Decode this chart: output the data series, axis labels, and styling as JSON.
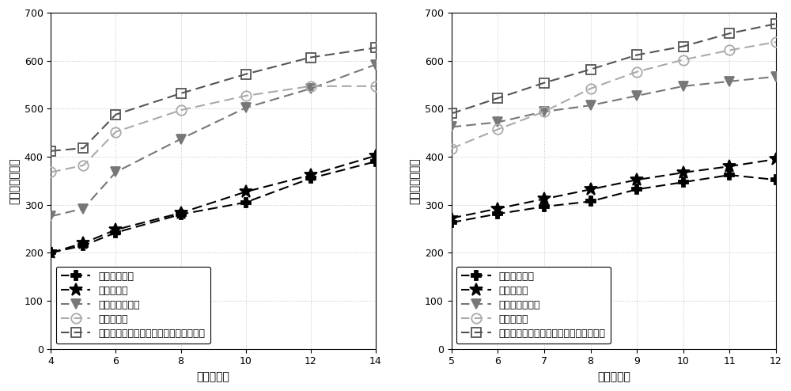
{
  "left_chart": {
    "xlabel": "用户的数目",
    "ylabel": "所有用户的效用",
    "xlim": [
      4,
      14
    ],
    "ylim": [
      0,
      700
    ],
    "xticks": [
      4,
      6,
      8,
      10,
      12,
      14
    ],
    "yticks": [
      0,
      100,
      200,
      300,
      400,
      500,
      600,
      700
    ],
    "series": [
      {
        "label": "不分离的接入",
        "x": [
          4,
          5,
          6,
          8,
          10,
          12,
          14
        ],
        "y": [
          200,
          215,
          242,
          280,
          305,
          355,
          390
        ],
        "color": "#111111",
        "marker": "P",
        "markersize": 8,
        "markerfacecolor": "#111111",
        "linewidth": 1.5
      },
      {
        "label": "分离的接入",
        "x": [
          4,
          5,
          6,
          8,
          10,
          12,
          14
        ],
        "y": [
          200,
          220,
          248,
          283,
          327,
          362,
          402
        ],
        "color": "#111111",
        "marker": "*",
        "markersize": 12,
        "markerfacecolor": "#111111",
        "linewidth": 1.5
      },
      {
        "label": "不分离的双连接",
        "x": [
          4,
          5,
          6,
          8,
          10,
          12,
          14
        ],
        "y": [
          276,
          292,
          368,
          437,
          502,
          542,
          592
        ],
        "color": "#666666",
        "marker": "v",
        "markersize": 10,
        "markerfacecolor": "#666666",
        "linewidth": 1.5
      },
      {
        "label": "分离多接入",
        "x": [
          4,
          5,
          6,
          8,
          10,
          12,
          14
        ],
        "y": [
          368,
          382,
          452,
          497,
          527,
          547,
          547
        ],
        "color": "#888888",
        "marker": "o",
        "markersize": 10,
        "markerfacecolor": "none",
        "linewidth": 1.5
      },
      {
        "label": "本发明的基于服务质量需求的分离多接入",
        "x": [
          4,
          5,
          6,
          8,
          10,
          12,
          14
        ],
        "y": [
          412,
          418,
          488,
          532,
          572,
          607,
          627
        ],
        "color": "#444444",
        "marker": "s",
        "markersize": 9,
        "markerfacecolor": "none",
        "linewidth": 1.5
      }
    ]
  },
  "right_chart": {
    "xlabel": "基站的数目",
    "ylabel": "所有用户的效用",
    "xlim": [
      5,
      12
    ],
    "ylim": [
      0,
      700
    ],
    "xticks": [
      5,
      6,
      7,
      8,
      9,
      10,
      11,
      12
    ],
    "yticks": [
      0,
      100,
      200,
      300,
      400,
      500,
      600,
      700
    ],
    "series": [
      {
        "label": "不分离的接入",
        "x": [
          5,
          6,
          7,
          8,
          9,
          10,
          11,
          12
        ],
        "y": [
          263,
          281,
          296,
          307,
          332,
          347,
          362,
          352
        ],
        "color": "#111111",
        "marker": "P",
        "markersize": 8,
        "markerfacecolor": "#111111",
        "linewidth": 1.5
      },
      {
        "label": "分离的接入",
        "x": [
          5,
          6,
          7,
          8,
          9,
          10,
          11,
          12
        ],
        "y": [
          272,
          292,
          312,
          332,
          352,
          367,
          380,
          395
        ],
        "color": "#111111",
        "marker": "*",
        "markersize": 12,
        "markerfacecolor": "#111111",
        "linewidth": 1.5
      },
      {
        "label": "不分离的双连接",
        "x": [
          5,
          6,
          7,
          8,
          9,
          10,
          11,
          12
        ],
        "y": [
          462,
          472,
          494,
          507,
          527,
          547,
          557,
          567
        ],
        "color": "#666666",
        "marker": "v",
        "markersize": 10,
        "markerfacecolor": "#666666",
        "linewidth": 1.5
      },
      {
        "label": "分离多接入",
        "x": [
          5,
          6,
          7,
          8,
          9,
          10,
          11,
          12
        ],
        "y": [
          417,
          457,
          494,
          542,
          577,
          602,
          622,
          639
        ],
        "color": "#888888",
        "marker": "o",
        "markersize": 10,
        "markerfacecolor": "none",
        "linewidth": 1.5
      },
      {
        "label": "本发明的基于服务质量需求的分离多接入",
        "x": [
          5,
          6,
          7,
          8,
          9,
          10,
          11,
          12
        ],
        "y": [
          490,
          522,
          554,
          582,
          612,
          630,
          657,
          677
        ],
        "color": "#444444",
        "marker": "s",
        "markersize": 9,
        "markerfacecolor": "none",
        "linewidth": 1.5
      }
    ]
  },
  "legend_labels": [
    "不分离的接入",
    "分离的接入",
    "不分离的双连接",
    "分离多接入",
    "本发明的基于服务质量需求的分离多接入"
  ],
  "background_color": "#ffffff",
  "grid_color": "#bbbbbb",
  "font_size": 9,
  "label_font_size": 10,
  "legend_fontsize": 9
}
